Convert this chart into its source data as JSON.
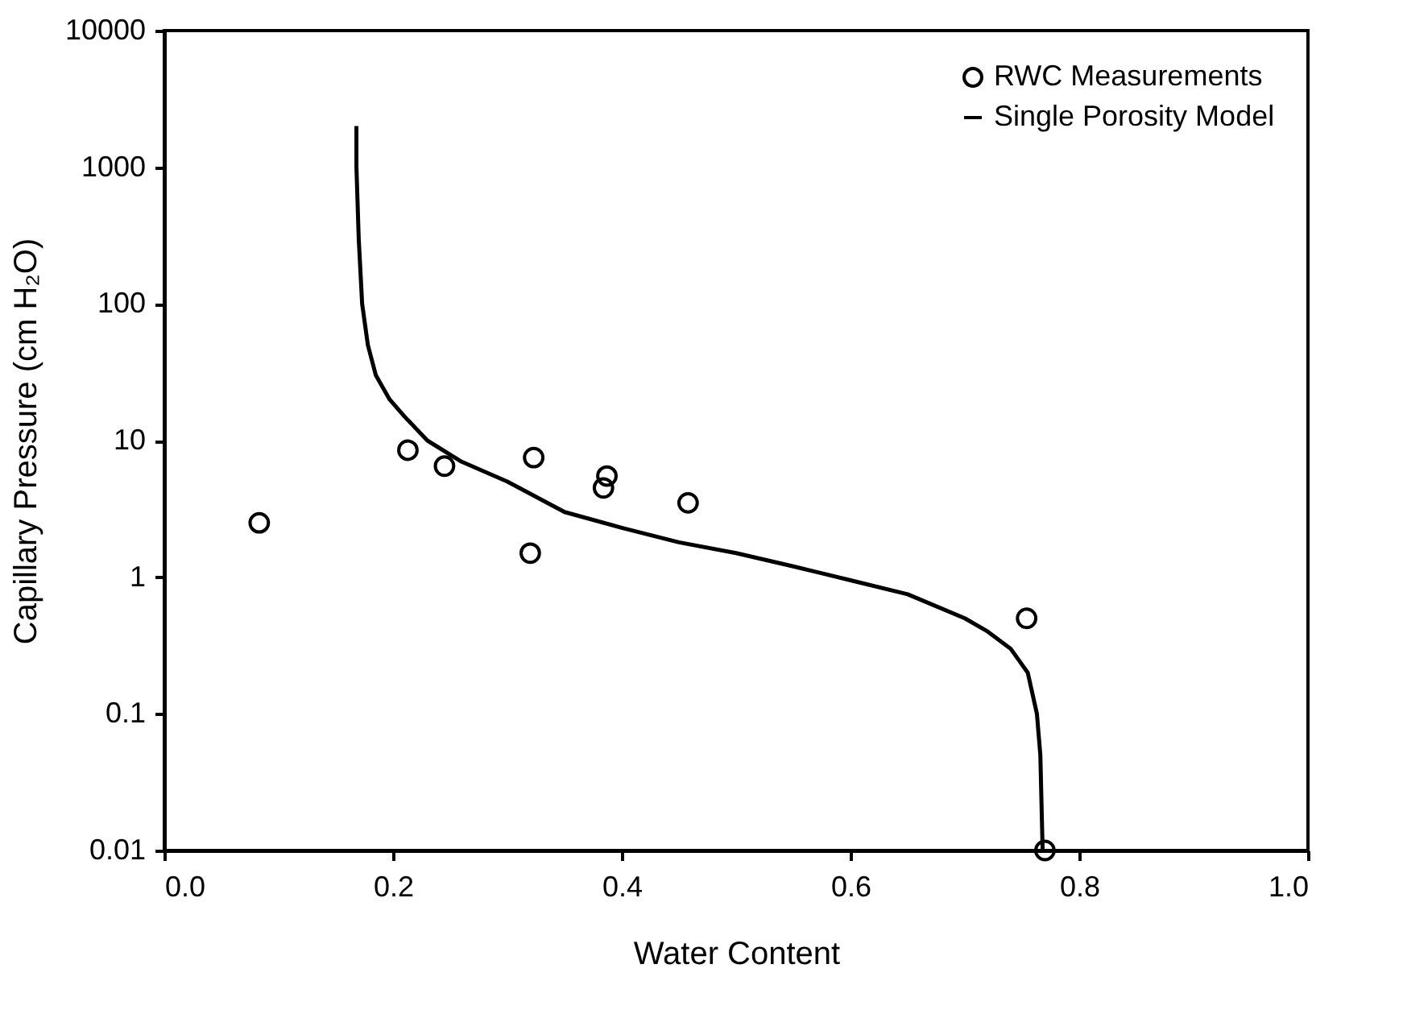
{
  "chart_data": {
    "type": "scatter",
    "xlabel": "Water Content",
    "ylabel": "Capillary Pressure (cm H₂O)",
    "log": "y",
    "grid": false,
    "legend": "top right",
    "xlim": [
      0.0,
      1.0
    ],
    "xticks": [
      {
        "value": 0,
        "label": "0.0"
      },
      {
        "value": 0.2,
        "label": "0.2"
      },
      {
        "value": 0.4,
        "label": "0.4"
      },
      {
        "value": 0.6,
        "label": "0.6"
      },
      {
        "value": 0.8,
        "label": "0.8"
      },
      {
        "value": 1,
        "label": "1.0"
      }
    ],
    "ylim": [
      0.01,
      10000
    ],
    "yticks": [
      0.01,
      0.1,
      1,
      10,
      100,
      1000,
      10000
    ],
    "series": [
      {
        "name": "RWC Measurements",
        "marker": "circle",
        "color": "#000000",
        "x": [
          0.083,
          0.213,
          0.245,
          0.323,
          0.32,
          0.387,
          0.384,
          0.458,
          0.754,
          0.77
        ],
        "values": [
          2.5,
          8.5,
          6.5,
          7.5,
          1.5,
          5.5,
          4.5,
          3.5,
          0.5,
          0.01
        ]
      },
      {
        "name": "Single Porosity Model",
        "type": "line",
        "marker": "none",
        "line_style": "solid",
        "color": "#000000",
        "x": [
          0.168,
          0.168,
          0.17,
          0.173,
          0.178,
          0.185,
          0.197,
          0.21,
          0.23,
          0.26,
          0.3,
          0.35,
          0.4,
          0.45,
          0.5,
          0.55,
          0.6,
          0.65,
          0.7,
          0.72,
          0.74,
          0.755,
          0.763,
          0.766,
          0.768
        ],
        "values": [
          2000,
          1000,
          300,
          100,
          50,
          30,
          20,
          15,
          10,
          7,
          5,
          3,
          2.3,
          1.8,
          1.5,
          1.2,
          0.95,
          0.75,
          0.5,
          0.4,
          0.3,
          0.2,
          0.1,
          0.05,
          0.01
        ]
      }
    ]
  }
}
